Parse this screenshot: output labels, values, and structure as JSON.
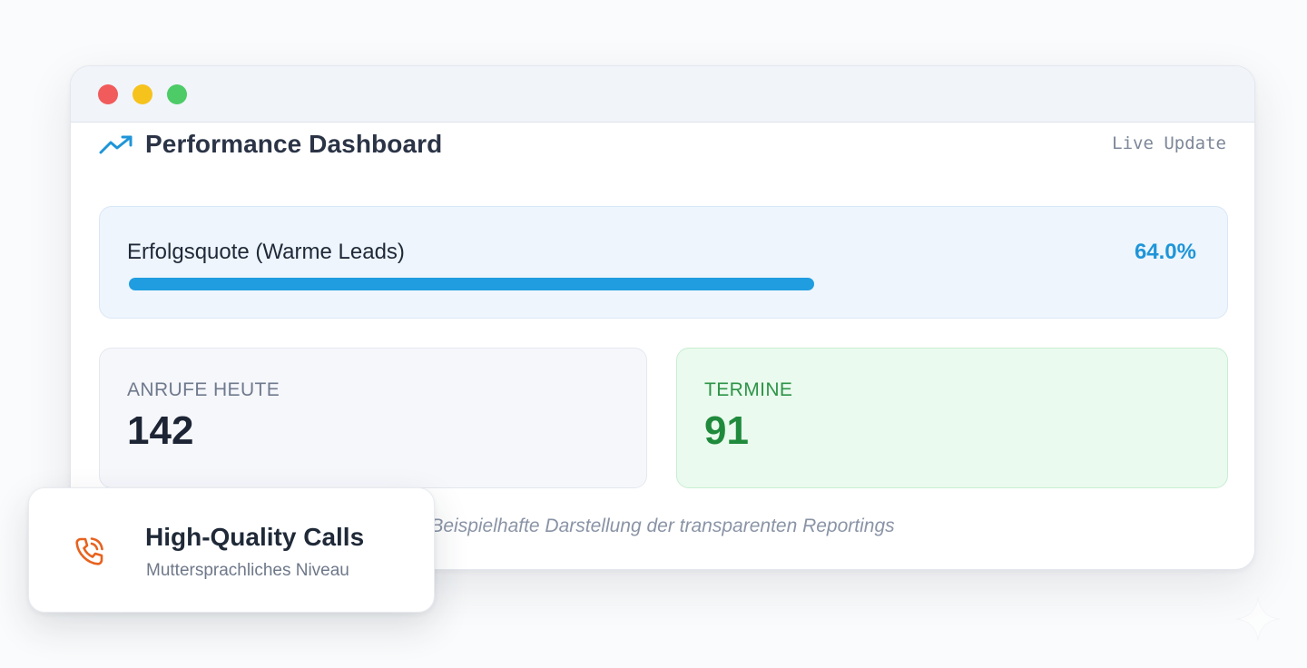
{
  "window": {
    "title": "Performance Dashboard",
    "status": "Live Update",
    "controls": [
      "close",
      "minimize",
      "maximize"
    ]
  },
  "success": {
    "label": "Erfolgsquote (Warme Leads)",
    "value": "64.0%",
    "progress": 0.64
  },
  "stats": {
    "calls": {
      "label": "ANRUFE HEUTE",
      "value": "142"
    },
    "appointments": {
      "label": "TERMINE",
      "value": "91"
    }
  },
  "caption": "Beispielhafte Darstellung der transparenten Reportings",
  "badge": {
    "title": "High-Quality Calls",
    "subtitle": "Muttersprachliches Niveau",
    "icon": "phone-icon"
  },
  "colors": {
    "accent": "#1f9de0",
    "success": "#1f8a3c",
    "badge_icon": "#e8621f"
  }
}
